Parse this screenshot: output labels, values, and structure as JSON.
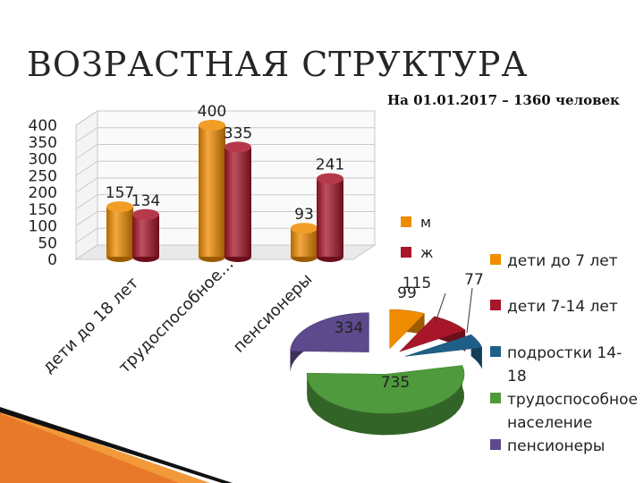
{
  "slide": {
    "title": "ВОЗРАСТНАЯ СТРУКТУРА",
    "subtitle": "На 01.01.2017 – 1360 человек"
  },
  "chart_data": [
    {
      "type": "bar",
      "categories": [
        "дети до 18 лет",
        "трудоспособное…",
        "пенсионеры"
      ],
      "series": [
        {
          "name": "м",
          "values": [
            157,
            400,
            93
          ],
          "color": "#f08c00"
        },
        {
          "name": "ж",
          "values": [
            134,
            335,
            241
          ],
          "color": "#a8162a"
        }
      ],
      "ylim": [
        0,
        400
      ],
      "yticks": [
        "0",
        "50",
        "100",
        "150",
        "200",
        "250",
        "300",
        "350",
        "400"
      ],
      "grid": true,
      "legend": "right",
      "style": "3d-cylinder"
    },
    {
      "type": "pie",
      "style": "3d-exploded",
      "legend": "right",
      "slices": [
        {
          "label": "дети до 7 лет",
          "value": 99,
          "color": "#f08c00"
        },
        {
          "label": "дети 7-14 лет",
          "value": 115,
          "color": "#a8162a"
        },
        {
          "label": "подростки 14-18",
          "value": 77,
          "color": "#1f5f87"
        },
        {
          "label": "трудоспособное население",
          "value": 735,
          "color": "#4f9a3c"
        },
        {
          "label": "пенсионеры",
          "value": 334,
          "color": "#5c4a8c"
        }
      ]
    }
  ]
}
